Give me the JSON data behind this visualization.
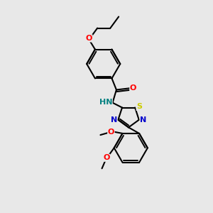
{
  "bg_color": "#e8e8e8",
  "bond_color": "#000000",
  "atom_colors": {
    "O": "#ff0000",
    "N": "#0000cc",
    "S": "#cccc00",
    "H": "#008080",
    "C": "#000000"
  },
  "figsize": [
    3.0,
    3.0
  ],
  "dpi": 100
}
